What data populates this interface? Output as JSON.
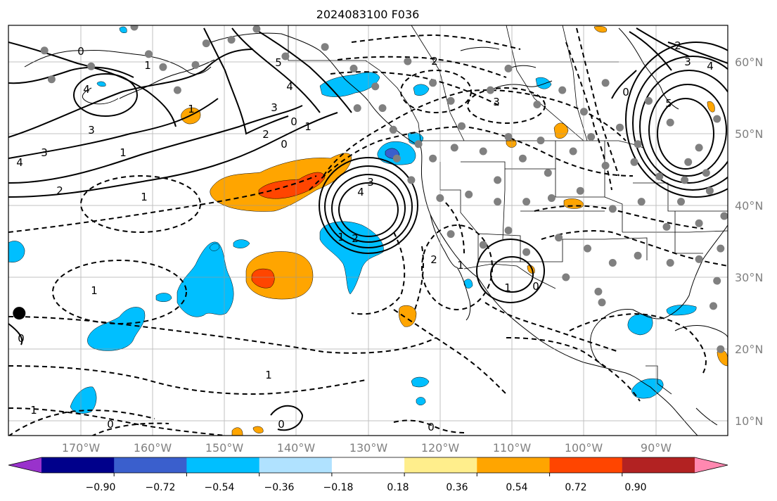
{
  "title": "2024083100 F036",
  "map": {
    "projection": "PlateCarree",
    "lon_range": [
      -180,
      -80
    ],
    "lat_range": [
      7,
      64
    ],
    "lat_labels": [
      "10°N",
      "20°N",
      "30°N",
      "40°N",
      "50°N",
      "60°N"
    ],
    "lon_labels": [
      "170°W",
      "160°W",
      "150°W",
      "140°W",
      "130°W",
      "120°W",
      "110°W",
      "100°W",
      "90°W"
    ],
    "gridlines": true,
    "coastlines": true,
    "borders": true,
    "contour_color": "#000000",
    "negative_contours": "dashed",
    "station_color": "#808080"
  },
  "colorbar": {
    "orientation": "horizontal",
    "extend": "both",
    "tick_labels": [
      "−0.90",
      "−0.72",
      "−0.54",
      "−0.36",
      "−0.18",
      "0.18",
      "0.36",
      "0.54",
      "0.72",
      "0.90"
    ],
    "colors": [
      "#9932cc",
      "#00008b",
      "#3a5fcd",
      "#00bfff",
      "#b0e2ff",
      "#ffffff",
      "#ffee8c",
      "#ffa500",
      "#ff4500",
      "#b22222",
      "#ff88b0"
    ]
  },
  "contour_labels": [
    {
      "text": "0"
    },
    {
      "text": "1"
    },
    {
      "text": "4"
    },
    {
      "text": "3"
    },
    {
      "text": "1"
    },
    {
      "text": "3"
    },
    {
      "text": "2"
    },
    {
      "text": "4"
    },
    {
      "text": "1"
    },
    {
      "text": "5"
    },
    {
      "text": "4"
    },
    {
      "text": "3"
    },
    {
      "text": "2"
    },
    {
      "text": "0"
    },
    {
      "text": "1"
    },
    {
      "text": "0"
    },
    {
      "text": "2"
    },
    {
      "text": "3"
    },
    {
      "text": "3"
    },
    {
      "text": "4"
    },
    {
      "text": "2"
    },
    {
      "text": "1"
    },
    {
      "text": "1"
    },
    {
      "text": "2"
    },
    {
      "text": "1"
    },
    {
      "text": "1"
    },
    {
      "text": "0"
    },
    {
      "text": "1"
    },
    {
      "text": "0"
    },
    {
      "text": "1"
    },
    {
      "text": "0"
    },
    {
      "text": "0"
    },
    {
      "text": "2"
    },
    {
      "text": "3"
    },
    {
      "text": "4"
    },
    {
      "text": "5"
    },
    {
      "text": "0"
    },
    {
      "text": "1"
    },
    {
      "text": "0"
    }
  ],
  "stations": [
    {
      "lon": -175.0,
      "lat": 60.5
    },
    {
      "lon": -174.0,
      "lat": 56.5
    },
    {
      "lon": -168.5,
      "lat": 58.3
    },
    {
      "lon": -162.5,
      "lat": 63.8
    },
    {
      "lon": -160.5,
      "lat": 60.0
    },
    {
      "lon": -158.5,
      "lat": 58.2
    },
    {
      "lon": -156.5,
      "lat": 55.0
    },
    {
      "lon": -154.0,
      "lat": 58.5
    },
    {
      "lon": -152.5,
      "lat": 61.5
    },
    {
      "lon": -149.0,
      "lat": 62.0
    },
    {
      "lon": -145.5,
      "lat": 63.5
    },
    {
      "lon": -141.5,
      "lat": 59.7
    },
    {
      "lon": -136.0,
      "lat": 61.0
    },
    {
      "lon": -132.0,
      "lat": 58.0
    },
    {
      "lon": -129.0,
      "lat": 55.5
    },
    {
      "lon": -124.5,
      "lat": 59.0
    },
    {
      "lon": -121.0,
      "lat": 56.0
    },
    {
      "lon": -118.5,
      "lat": 53.5
    },
    {
      "lon": -117.0,
      "lat": 50.0
    },
    {
      "lon": -113.0,
      "lat": 55.0
    },
    {
      "lon": -110.5,
      "lat": 58.0
    },
    {
      "lon": -106.5,
      "lat": 53.0
    },
    {
      "lon": -103.0,
      "lat": 55.0
    },
    {
      "lon": -100.0,
      "lat": 52.0
    },
    {
      "lon": -97.0,
      "lat": 56.0
    },
    {
      "lon": -95.0,
      "lat": 49.8
    },
    {
      "lon": -91.0,
      "lat": 53.5
    },
    {
      "lon": -88.0,
      "lat": 50.5
    },
    {
      "lon": -84.0,
      "lat": 47.0
    },
    {
      "lon": -81.5,
      "lat": 51.0
    },
    {
      "lon": -126.5,
      "lat": 49.5
    },
    {
      "lon": -123.0,
      "lat": 47.5
    },
    {
      "lon": -121.0,
      "lat": 45.5
    },
    {
      "lon": -118.0,
      "lat": 47.0
    },
    {
      "lon": -114.0,
      "lat": 46.5
    },
    {
      "lon": -112.0,
      "lat": 42.5
    },
    {
      "lon": -108.5,
      "lat": 45.5
    },
    {
      "lon": -105.0,
      "lat": 43.5
    },
    {
      "lon": -101.5,
      "lat": 46.5
    },
    {
      "lon": -97.0,
      "lat": 44.5
    },
    {
      "lon": -93.0,
      "lat": 45.0
    },
    {
      "lon": -89.5,
      "lat": 43.0
    },
    {
      "lon": -86.0,
      "lat": 42.5
    },
    {
      "lon": -82.5,
      "lat": 41.0
    },
    {
      "lon": -124.0,
      "lat": 42.5
    },
    {
      "lon": -120.0,
      "lat": 40.0
    },
    {
      "lon": -116.0,
      "lat": 40.5
    },
    {
      "lon": -112.0,
      "lat": 39.5
    },
    {
      "lon": -108.0,
      "lat": 39.5
    },
    {
      "lon": -104.5,
      "lat": 40.0
    },
    {
      "lon": -100.5,
      "lat": 41.0
    },
    {
      "lon": -96.0,
      "lat": 38.5
    },
    {
      "lon": -92.0,
      "lat": 39.5
    },
    {
      "lon": -88.5,
      "lat": 36.0
    },
    {
      "lon": -84.0,
      "lat": 36.5
    },
    {
      "lon": -80.5,
      "lat": 37.5
    },
    {
      "lon": -118.5,
      "lat": 35.0
    },
    {
      "lon": -114.0,
      "lat": 33.5
    },
    {
      "lon": -110.5,
      "lat": 35.5
    },
    {
      "lon": -108.0,
      "lat": 32.5
    },
    {
      "lon": -103.5,
      "lat": 34.5
    },
    {
      "lon": -99.5,
      "lat": 33.0
    },
    {
      "lon": -96.0,
      "lat": 31.0
    },
    {
      "lon": -92.5,
      "lat": 32.0
    },
    {
      "lon": -88.0,
      "lat": 31.0
    },
    {
      "lon": -84.0,
      "lat": 31.5
    },
    {
      "lon": -81.5,
      "lat": 28.5
    },
    {
      "lon": -102.5,
      "lat": 29.0
    },
    {
      "lon": -98.0,
      "lat": 27.0
    },
    {
      "lon": -82.0,
      "lat": 25.0
    },
    {
      "lon": -81.0,
      "lat": 19.0
    },
    {
      "lon": -97.5,
      "lat": 25.5
    },
    {
      "lon": -126.0,
      "lat": 45.5
    },
    {
      "lon": -131.5,
      "lat": 52.5
    },
    {
      "lon": -128.0,
      "lat": 52.5
    },
    {
      "lon": -110.5,
      "lat": 48.5
    },
    {
      "lon": -106.0,
      "lat": 48.0
    },
    {
      "lon": -99.0,
      "lat": 48.5
    },
    {
      "lon": -92.5,
      "lat": 47.5
    },
    {
      "lon": -85.5,
      "lat": 45.0
    },
    {
      "lon": -83.0,
      "lat": 43.5
    },
    {
      "lon": -86.5,
      "lat": 39.5
    },
    {
      "lon": -81.0,
      "lat": 33.0
    }
  ],
  "black_marker": {
    "lon": -178.5,
    "lat": 24.0
  }
}
